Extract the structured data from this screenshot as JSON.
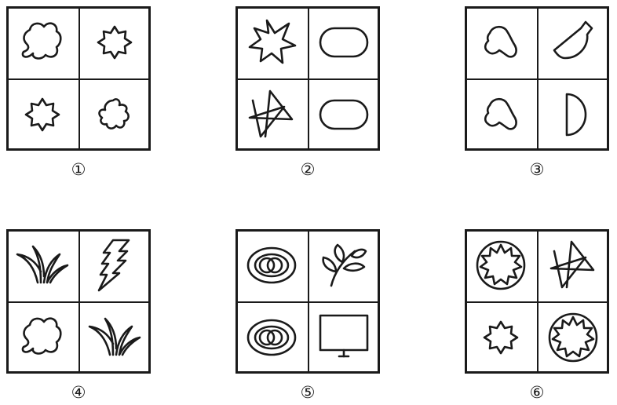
{
  "panels": [
    {
      "label": "①",
      "cells": [
        "blob-shape",
        "seven-point-star",
        "seven-point-star",
        "five-lobe-shape"
      ]
    },
    {
      "label": "②",
      "cells": [
        "irregular-star",
        "rounded-rectangle",
        "crossed-star",
        "rounded-rectangle"
      ]
    },
    {
      "label": "③",
      "cells": [
        "peanut-shape",
        "bowl-shape",
        "peanut-shape",
        "half-circle"
      ]
    },
    {
      "label": "④",
      "cells": [
        "grass-icon",
        "lightning-icon",
        "blob-shape",
        "grass-icon"
      ]
    },
    {
      "label": "⑤",
      "cells": [
        "concentric-rings",
        "leaf-sprig-icon",
        "concentric-rings",
        "monitor-icon"
      ]
    },
    {
      "label": "⑥",
      "cells": [
        "sun-wheel-icon",
        "crossed-star",
        "seven-point-star",
        "sun-wheel-icon"
      ]
    }
  ]
}
